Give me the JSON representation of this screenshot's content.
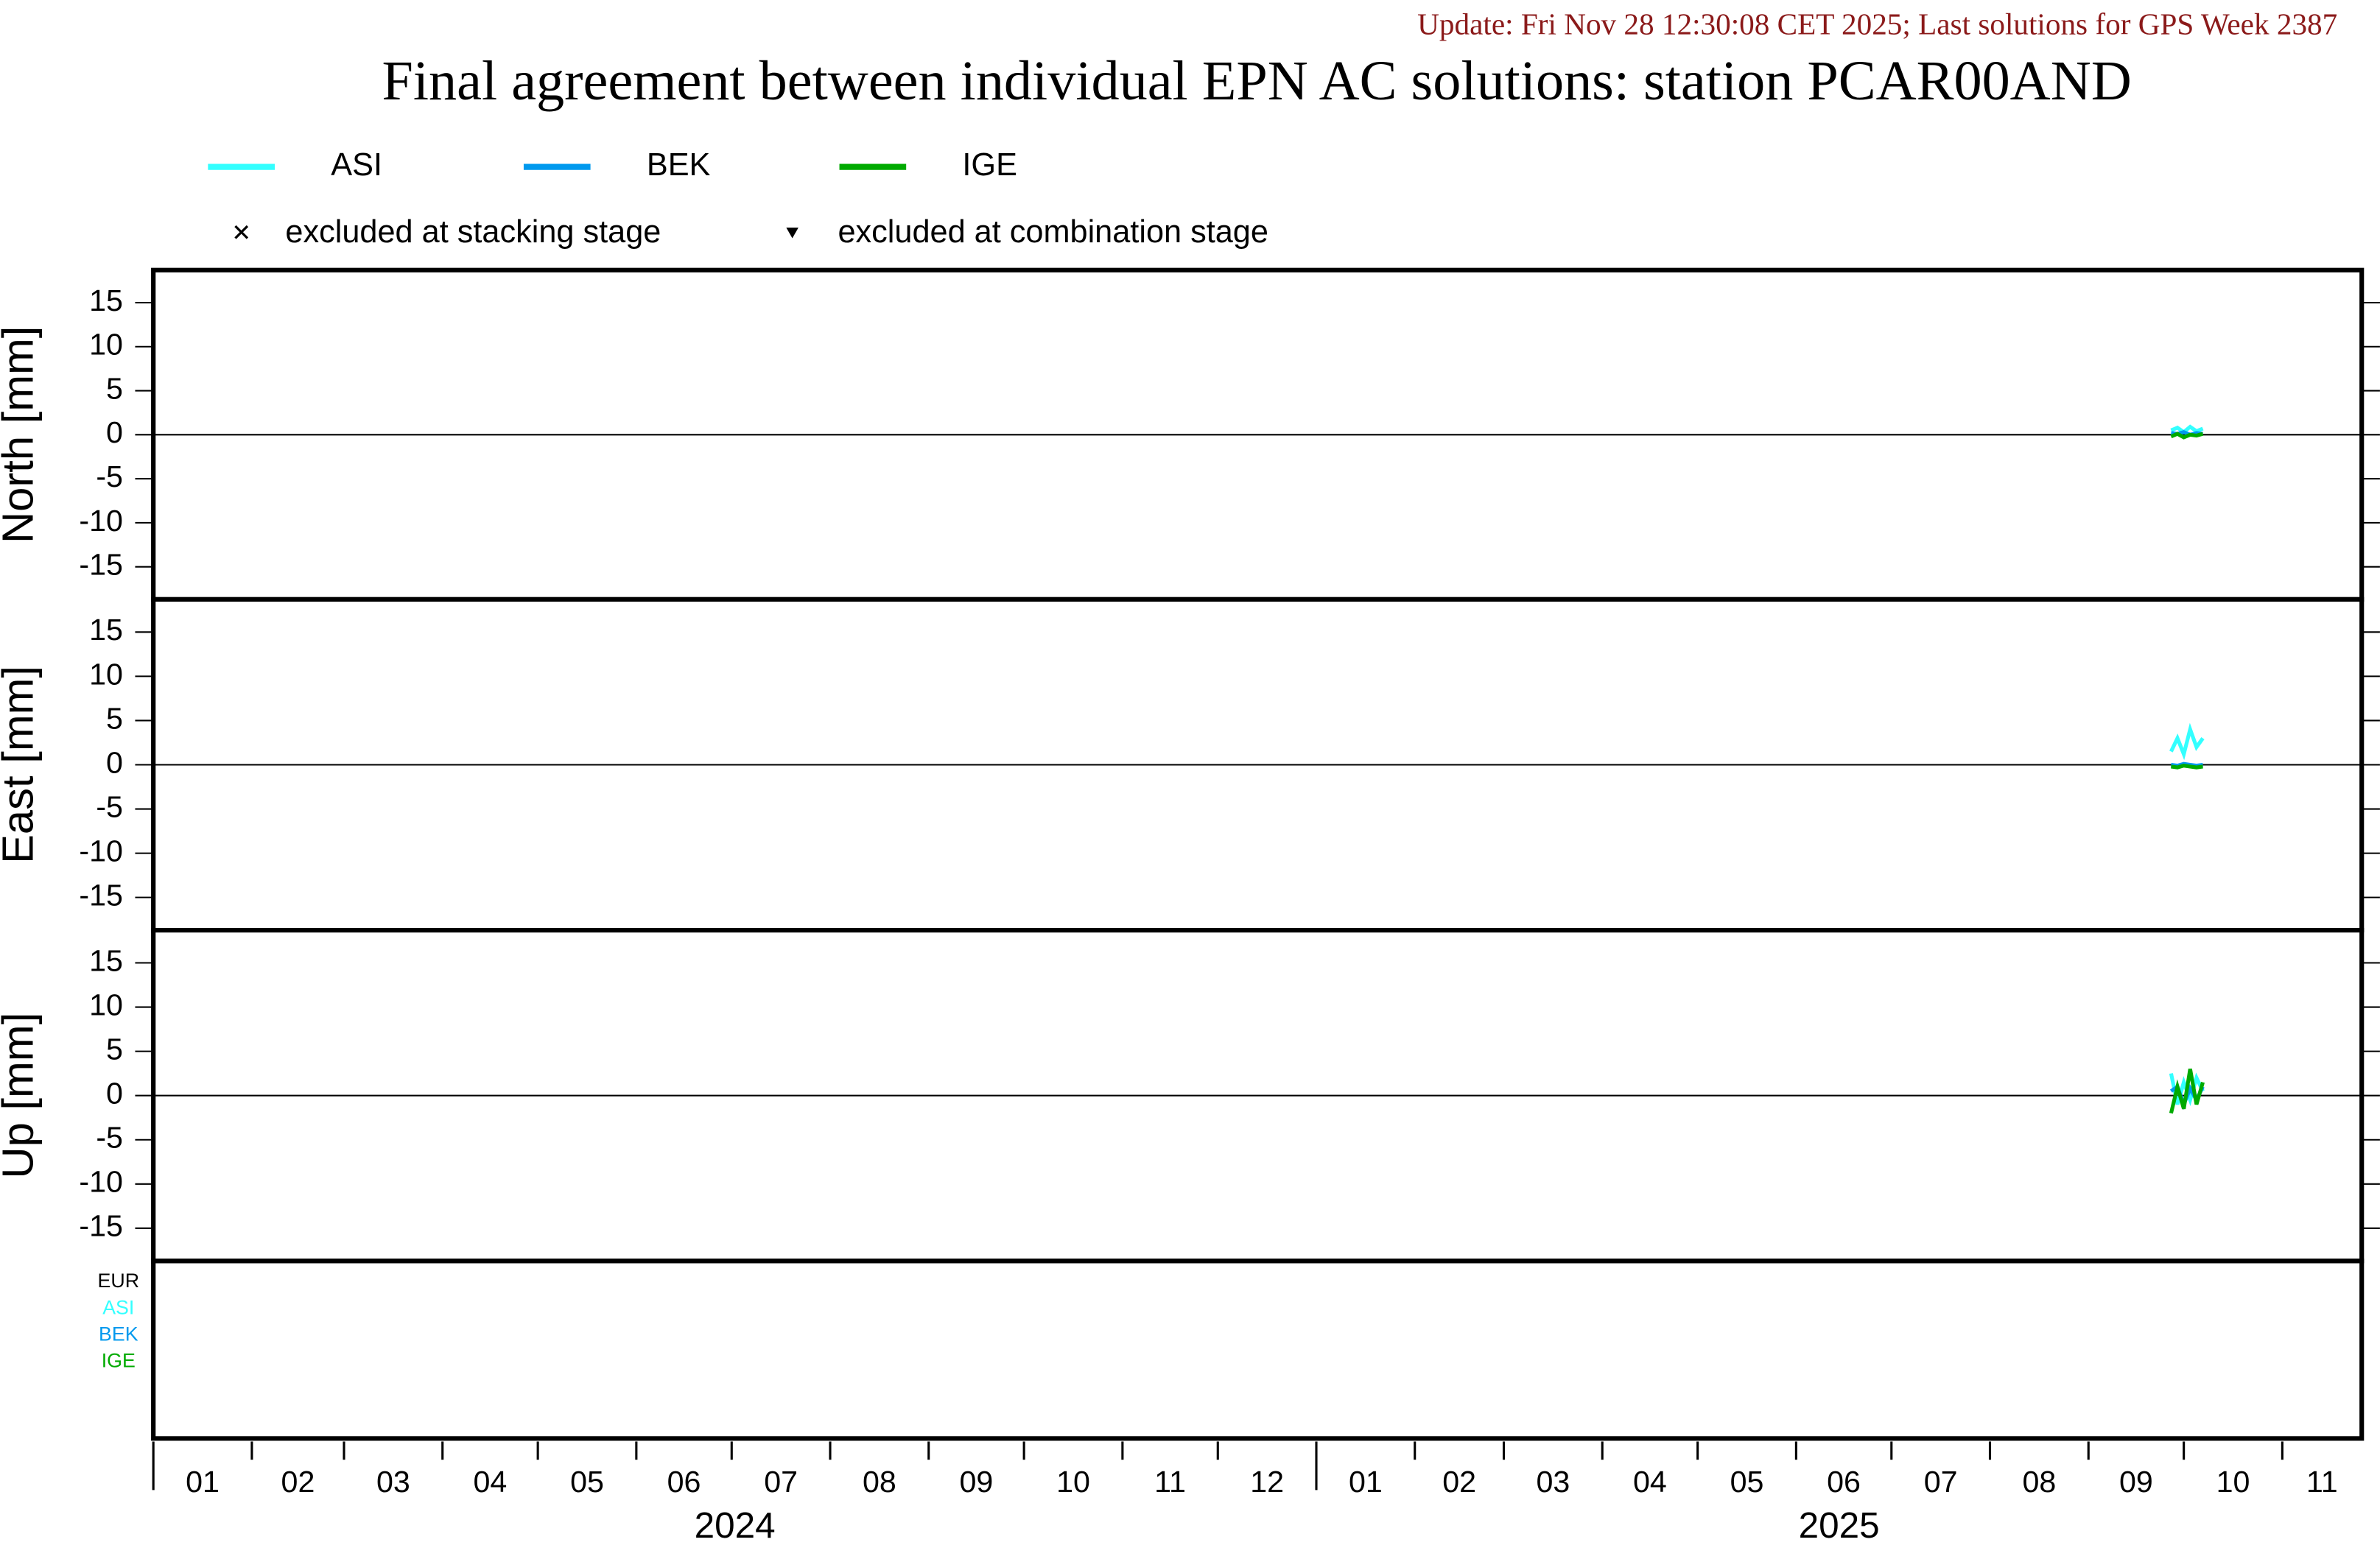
{
  "chart_data": {
    "type": "line",
    "subtitle": "Update: Fri Nov 28 12:30:08 CET 2025; Last solutions for GPS Week 2387",
    "title": "Final agreement between individual EPN AC solutions: station PCAR00AND",
    "legend_notes": [
      "excluded at stacking stage",
      "excluded at combination stage"
    ],
    "x": [
      "2025-09-27",
      "2025-09-29",
      "2025-10-01",
      "2025-10-03",
      "2025-10-05",
      "2025-10-07"
    ],
    "xlim": [
      "2024-01-01",
      "2025-11-26"
    ],
    "xticks": [
      {
        "value": "2024-01-01",
        "label": "01"
      },
      {
        "value": "2024-02-01",
        "label": "02"
      },
      {
        "value": "2024-03-01",
        "label": "03"
      },
      {
        "value": "2024-04-01",
        "label": "04"
      },
      {
        "value": "2024-05-01",
        "label": "05"
      },
      {
        "value": "2024-06-01",
        "label": "06"
      },
      {
        "value": "2024-07-01",
        "label": "07"
      },
      {
        "value": "2024-08-01",
        "label": "08"
      },
      {
        "value": "2024-09-01",
        "label": "09"
      },
      {
        "value": "2024-10-01",
        "label": "10"
      },
      {
        "value": "2024-11-01",
        "label": "11"
      },
      {
        "value": "2024-12-01",
        "label": "12"
      },
      {
        "value": "2025-01-01",
        "label": "01"
      },
      {
        "value": "2025-02-01",
        "label": "02"
      },
      {
        "value": "2025-03-01",
        "label": "03"
      },
      {
        "value": "2025-04-01",
        "label": "04"
      },
      {
        "value": "2025-05-01",
        "label": "05"
      },
      {
        "value": "2025-06-01",
        "label": "06"
      },
      {
        "value": "2025-07-01",
        "label": "07"
      },
      {
        "value": "2025-08-01",
        "label": "08"
      },
      {
        "value": "2025-09-01",
        "label": "09"
      },
      {
        "value": "2025-10-01",
        "label": "10"
      },
      {
        "value": "2025-11-01",
        "label": "11"
      }
    ],
    "years": [
      {
        "value": "2024-01-01",
        "label": "2024"
      },
      {
        "value": "2025-01-01",
        "label": "2025"
      }
    ],
    "ylim": [
      -18.7,
      18.7
    ],
    "yticks": [
      -15,
      -10,
      -5,
      0,
      5,
      10,
      15
    ],
    "panels": [
      {
        "ylabel": "North [mm]",
        "series": [
          {
            "name": "ASI",
            "color": "#33ffff",
            "values": [
              0.5,
              0.8,
              0.3,
              0.9,
              0.4,
              0.7
            ]
          },
          {
            "name": "BEK",
            "color": "#0099ee",
            "values": [
              0.2,
              0.1,
              0.3,
              0.0,
              0.2,
              0.1
            ]
          },
          {
            "name": "IGE",
            "color": "#00aa00",
            "values": [
              -0.2,
              0.1,
              -0.3,
              0.0,
              -0.1,
              0.1
            ]
          }
        ]
      },
      {
        "ylabel": "East [mm]",
        "series": [
          {
            "name": "ASI",
            "color": "#33ffff",
            "values": [
              1.5,
              3.0,
              1.2,
              4.0,
              2.0,
              3.0
            ]
          },
          {
            "name": "BEK",
            "color": "#0099ee",
            "values": [
              0.0,
              -0.1,
              0.1,
              0.0,
              -0.1,
              0.0
            ]
          },
          {
            "name": "IGE",
            "color": "#00aa00",
            "values": [
              -0.2,
              -0.3,
              -0.1,
              -0.2,
              -0.3,
              -0.2
            ]
          }
        ]
      },
      {
        "ylabel": "Up [mm]",
        "series": [
          {
            "name": "ASI",
            "color": "#33ffff",
            "values": [
              2.5,
              -1.0,
              1.5,
              -0.5,
              2.0,
              0.5
            ]
          },
          {
            "name": "BEK",
            "color": "#0099ee",
            "values": [
              0.5,
              1.0,
              -1.0,
              0.8,
              -0.5,
              1.0
            ]
          },
          {
            "name": "IGE",
            "color": "#00aa00",
            "values": [
              -2.0,
              1.0,
              -1.5,
              3.0,
              -1.0,
              1.5
            ]
          }
        ]
      }
    ],
    "solution_labels": [
      {
        "name": "EUR",
        "color": "#000000"
      },
      {
        "name": "ASI",
        "color": "#33ffff"
      },
      {
        "name": "BEK",
        "color": "#0099ee"
      },
      {
        "name": "IGE",
        "color": "#00aa00"
      }
    ]
  }
}
